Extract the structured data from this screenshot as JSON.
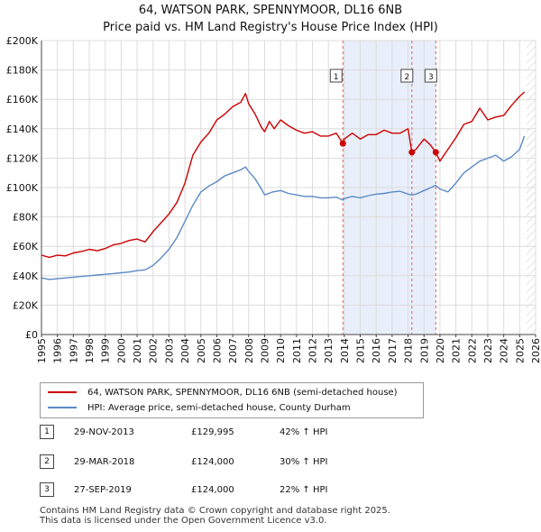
{
  "title": {
    "line1": "64, WATSON PARK, SPENNYMOOR, DL16 6NB",
    "line2": "Price paid vs. HM Land Registry's House Price Index (HPI)"
  },
  "chart_data": {
    "type": "line",
    "ylim": [
      0,
      200000
    ],
    "xlim": [
      1995,
      2026
    ],
    "yticks": [
      0,
      20000,
      40000,
      60000,
      80000,
      100000,
      120000,
      140000,
      160000,
      180000,
      200000
    ],
    "ytick_labels": [
      "£0",
      "£20K",
      "£40K",
      "£60K",
      "£80K",
      "£100K",
      "£120K",
      "£140K",
      "£160K",
      "£180K",
      "£200K"
    ],
    "xticks": [
      1995,
      1996,
      1997,
      1998,
      1999,
      2000,
      2001,
      2002,
      2003,
      2004,
      2005,
      2006,
      2007,
      2008,
      2009,
      2010,
      2011,
      2012,
      2013,
      2014,
      2015,
      2016,
      2017,
      2018,
      2019,
      2020,
      2021,
      2022,
      2023,
      2024,
      2025,
      2026
    ],
    "xtick_labels": [
      "1995",
      "1996",
      "1997",
      "1998",
      "1999",
      "2000",
      "2001",
      "2002",
      "2003",
      "2004",
      "2005",
      "2006",
      "2007",
      "2008",
      "2009",
      "2010",
      "2011",
      "2012",
      "2013",
      "2014",
      "2015",
      "2016",
      "2017",
      "2018",
      "2019",
      "2020",
      "2021",
      "2022",
      "2023",
      "2024",
      "2025",
      "2026"
    ],
    "grid": true,
    "series": [
      {
        "name": "64, WATSON PARK, SPENNYMOOR, DL16 6NB (semi-detached house)",
        "color": "#cc0000",
        "x": [
          1995,
          1995.5,
          1996,
          1996.5,
          1997,
          1997.5,
          1998,
          1998.5,
          1999,
          1999.5,
          2000,
          2000.5,
          2001,
          2001.5,
          2002,
          2002.5,
          2003,
          2003.5,
          2004,
          2004.5,
          2005,
          2005.5,
          2006,
          2006.5,
          2007,
          2007.5,
          2007.8,
          2008,
          2008.4,
          2008.8,
          2009,
          2009.3,
          2009.6,
          2010,
          2010.5,
          2011,
          2011.5,
          2012,
          2012.5,
          2013,
          2013.5,
          2013.91,
          2014,
          2014.5,
          2015,
          2015.5,
          2016,
          2016.5,
          2017,
          2017.5,
          2018,
          2018.24,
          2018.5,
          2019,
          2019.4,
          2019.74,
          2020,
          2020.5,
          2021,
          2021.5,
          2022,
          2022.5,
          2023,
          2023.5,
          2024,
          2024.5,
          2025,
          2025.3
        ],
        "values": [
          54000,
          52500,
          54000,
          53500,
          55500,
          56500,
          58000,
          57000,
          58500,
          61000,
          62000,
          64000,
          65000,
          63000,
          70000,
          76000,
          82000,
          90000,
          103000,
          122000,
          131000,
          137000,
          146000,
          150000,
          155000,
          158000,
          164000,
          157000,
          150000,
          141000,
          138000,
          145000,
          140000,
          146000,
          142000,
          139000,
          137000,
          138000,
          135000,
          135000,
          137000,
          129995,
          133000,
          137000,
          133000,
          136000,
          136000,
          139000,
          137000,
          137000,
          140000,
          124000,
          126000,
          133000,
          129000,
          124000,
          118000,
          126000,
          134000,
          143000,
          145000,
          154000,
          146000,
          148000,
          149000,
          156000,
          162000,
          165000
        ]
      },
      {
        "name": "HPI: Average price, semi-detached house, County Durham",
        "color": "#5b8ac6",
        "x": [
          1995,
          1995.5,
          1996,
          1996.5,
          1997,
          1997.5,
          1998,
          1998.5,
          1999,
          1999.5,
          2000,
          2000.5,
          2001,
          2001.5,
          2002,
          2002.5,
          2003,
          2003.5,
          2004,
          2004.5,
          2005,
          2005.5,
          2006,
          2006.5,
          2007,
          2007.5,
          2007.8,
          2008,
          2008.4,
          2008.8,
          2009,
          2009.5,
          2010,
          2010.5,
          2011,
          2011.5,
          2012,
          2012.5,
          2013,
          2013.5,
          2013.91,
          2014,
          2014.5,
          2015,
          2015.5,
          2016,
          2016.5,
          2017,
          2017.5,
          2018,
          2018.24,
          2018.5,
          2019,
          2019.74,
          2020,
          2020.5,
          2021,
          2021.5,
          2022,
          2022.5,
          2023,
          2023.5,
          2024,
          2024.5,
          2025,
          2025.3
        ],
        "values": [
          38500,
          37500,
          38000,
          38500,
          39000,
          39500,
          40000,
          40500,
          41000,
          41500,
          42000,
          42500,
          43500,
          44000,
          47000,
          52000,
          58000,
          66000,
          77000,
          88000,
          97000,
          101000,
          104000,
          108000,
          110000,
          112000,
          114000,
          111000,
          106000,
          99000,
          95000,
          97000,
          98000,
          96000,
          95000,
          94000,
          94000,
          93000,
          93000,
          93500,
          91500,
          92500,
          94000,
          93000,
          94500,
          95500,
          96000,
          97000,
          97500,
          95500,
          95000,
          95500,
          98000,
          101500,
          99000,
          97000,
          103000,
          110000,
          114000,
          118000,
          120000,
          122000,
          118000,
          121000,
          126000,
          135000
        ]
      }
    ],
    "sales": [
      {
        "label": "1",
        "x": 2013.91,
        "value": 129995
      },
      {
        "label": "2",
        "x": 2018.24,
        "value": 124000
      },
      {
        "label": "3",
        "x": 2019.74,
        "value": 124000
      }
    ]
  },
  "legend": {
    "property_label": "64, WATSON PARK, SPENNYMOOR, DL16 6NB (semi-detached house)",
    "hpi_label": "HPI: Average price, semi-detached house, County Durham"
  },
  "sales_table": [
    {
      "num": "1",
      "date": "29-NOV-2013",
      "price": "£129,995",
      "hpi": "42% ↑ HPI"
    },
    {
      "num": "2",
      "date": "29-MAR-2018",
      "price": "£124,000",
      "hpi": "30% ↑ HPI"
    },
    {
      "num": "3",
      "date": "27-SEP-2019",
      "price": "£124,000",
      "hpi": "22% ↑ HPI"
    }
  ],
  "footer": {
    "line1": "Contains HM Land Registry data © Crown copyright and database right 2025.",
    "line2": "This data is licensed under the Open Government Licence v3.0."
  }
}
